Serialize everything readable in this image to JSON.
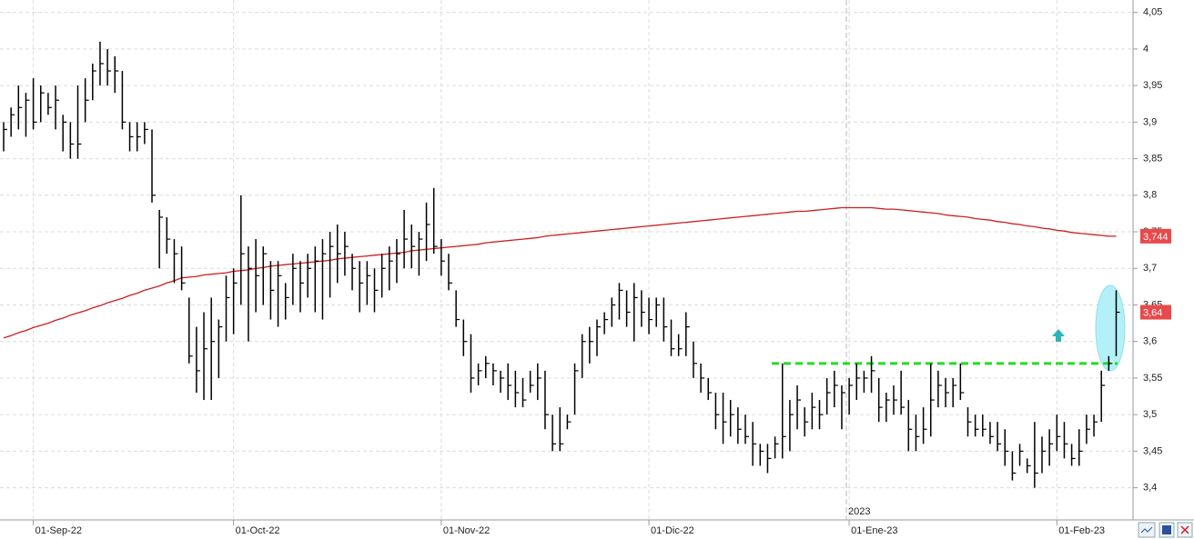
{
  "chart_data": {
    "type": "ohlc",
    "categories": [
      null,
      null,
      null,
      null,
      "01-Sep-22",
      null,
      null,
      null,
      null,
      null,
      null,
      null,
      null,
      null,
      null,
      null,
      null,
      null,
      null,
      null,
      null,
      null,
      null,
      null,
      null,
      null,
      null,
      null,
      null,
      null,
      null,
      "01-Oct-22",
      null,
      null,
      null,
      null,
      null,
      null,
      null,
      null,
      null,
      null,
      null,
      null,
      null,
      null,
      null,
      null,
      null,
      null,
      null,
      null,
      null,
      null,
      null,
      null,
      null,
      null,
      null,
      "01-Nov-22",
      null,
      null,
      null,
      null,
      null,
      null,
      null,
      null,
      null,
      null,
      null,
      null,
      null,
      null,
      null,
      null,
      null,
      null,
      null,
      null,
      null,
      null,
      null,
      null,
      null,
      null,
      null,
      "01-Dic-22",
      null,
      null,
      null,
      null,
      null,
      null,
      null,
      null,
      null,
      null,
      null,
      null,
      null,
      null,
      null,
      null,
      null,
      null,
      null,
      null,
      null,
      null,
      null,
      null,
      null,
      null,
      "01-Ene-23",
      null,
      null,
      null,
      null,
      null,
      null,
      null,
      null,
      null,
      null,
      null,
      null,
      null,
      null,
      null,
      null,
      null,
      null,
      null,
      null,
      null,
      null,
      null,
      null,
      null,
      null,
      null,
      "01-Feb-23",
      null,
      null,
      null,
      null,
      null,
      null,
      null,
      null
    ],
    "high": [
      3.9,
      3.92,
      3.95,
      3.94,
      3.96,
      3.95,
      3.94,
      3.95,
      3.91,
      3.9,
      3.95,
      3.96,
      3.98,
      4.01,
      4.0,
      3.99,
      3.97,
      3.9,
      3.9,
      3.9,
      3.89,
      3.78,
      3.77,
      3.74,
      3.73,
      3.66,
      3.62,
      3.64,
      3.66,
      3.63,
      3.69,
      3.7,
      3.8,
      3.73,
      3.74,
      3.73,
      3.71,
      3.71,
      3.68,
      3.72,
      3.71,
      3.72,
      3.73,
      3.74,
      3.75,
      3.76,
      3.75,
      3.72,
      3.71,
      3.71,
      3.7,
      3.72,
      3.73,
      3.74,
      3.78,
      3.76,
      3.75,
      3.79,
      3.81,
      3.74,
      3.72,
      3.67,
      3.63,
      3.61,
      3.57,
      3.58,
      3.57,
      3.56,
      3.57,
      3.56,
      3.55,
      3.56,
      3.57,
      3.56,
      3.5,
      3.51,
      3.5,
      3.57,
      3.61,
      3.62,
      3.63,
      3.64,
      3.66,
      3.68,
      3.67,
      3.68,
      3.67,
      3.66,
      3.66,
      3.66,
      3.63,
      3.61,
      3.64,
      3.6,
      3.57,
      3.55,
      3.53,
      3.53,
      3.52,
      3.51,
      3.5,
      3.49,
      3.46,
      3.46,
      3.47,
      3.57,
      3.52,
      3.54,
      3.51,
      3.53,
      3.52,
      3.55,
      3.56,
      3.54,
      3.55,
      3.57,
      3.56,
      3.58,
      3.55,
      3.53,
      3.54,
      3.56,
      3.52,
      3.5,
      3.51,
      3.57,
      3.56,
      3.55,
      3.55,
      3.57,
      3.51,
      3.5,
      3.5,
      3.49,
      3.49,
      3.48,
      3.45,
      3.46,
      3.44,
      3.49,
      3.47,
      3.48,
      3.5,
      3.49,
      3.46,
      3.48,
      3.5,
      3.5,
      3.56,
      3.58,
      3.67
    ],
    "low": [
      3.86,
      3.88,
      3.89,
      3.88,
      3.89,
      3.9,
      3.91,
      3.89,
      3.86,
      3.85,
      3.85,
      3.9,
      3.93,
      3.95,
      3.95,
      3.94,
      3.89,
      3.86,
      3.86,
      3.87,
      3.79,
      3.7,
      3.72,
      3.68,
      3.67,
      3.57,
      3.53,
      3.52,
      3.52,
      3.55,
      3.6,
      3.61,
      3.65,
      3.6,
      3.64,
      3.65,
      3.63,
      3.62,
      3.63,
      3.65,
      3.64,
      3.66,
      3.64,
      3.63,
      3.66,
      3.68,
      3.69,
      3.67,
      3.64,
      3.65,
      3.64,
      3.66,
      3.67,
      3.68,
      3.7,
      3.7,
      3.69,
      3.71,
      3.72,
      3.69,
      3.67,
      3.62,
      3.58,
      3.53,
      3.54,
      3.55,
      3.54,
      3.53,
      3.52,
      3.51,
      3.51,
      3.53,
      3.52,
      3.48,
      3.45,
      3.45,
      3.48,
      3.5,
      3.55,
      3.57,
      3.58,
      3.61,
      3.62,
      3.63,
      3.62,
      3.6,
      3.62,
      3.61,
      3.62,
      3.6,
      3.58,
      3.58,
      3.58,
      3.55,
      3.53,
      3.52,
      3.48,
      3.46,
      3.47,
      3.46,
      3.46,
      3.43,
      3.43,
      3.42,
      3.44,
      3.44,
      3.45,
      3.48,
      3.47,
      3.48,
      3.48,
      3.5,
      3.51,
      3.48,
      3.5,
      3.52,
      3.53,
      3.53,
      3.49,
      3.49,
      3.5,
      3.5,
      3.45,
      3.45,
      3.46,
      3.47,
      3.51,
      3.51,
      3.51,
      3.52,
      3.47,
      3.47,
      3.47,
      3.46,
      3.45,
      3.43,
      3.41,
      3.43,
      3.42,
      3.4,
      3.42,
      3.43,
      3.45,
      3.44,
      3.43,
      3.43,
      3.46,
      3.47,
      3.49,
      3.56,
      3.58
    ],
    "close": [
      3.89,
      3.91,
      3.92,
      3.93,
      3.9,
      3.94,
      3.92,
      3.93,
      3.9,
      3.87,
      3.87,
      3.93,
      3.97,
      3.98,
      3.97,
      3.97,
      3.9,
      3.88,
      3.88,
      3.89,
      3.8,
      3.77,
      3.74,
      3.72,
      3.68,
      3.58,
      3.56,
      3.59,
      3.6,
      3.62,
      3.66,
      3.68,
      3.72,
      3.7,
      3.69,
      3.72,
      3.67,
      3.69,
      3.66,
      3.7,
      3.68,
      3.7,
      3.71,
      3.72,
      3.73,
      3.72,
      3.73,
      3.7,
      3.68,
      3.69,
      3.67,
      3.7,
      3.71,
      3.72,
      3.74,
      3.73,
      3.74,
      3.76,
      3.73,
      3.71,
      3.68,
      3.63,
      3.6,
      3.55,
      3.56,
      3.57,
      3.56,
      3.55,
      3.54,
      3.53,
      3.52,
      3.54,
      3.55,
      3.5,
      3.46,
      3.46,
      3.49,
      3.56,
      3.6,
      3.6,
      3.62,
      3.63,
      3.65,
      3.67,
      3.64,
      3.66,
      3.64,
      3.63,
      3.65,
      3.62,
      3.59,
      3.59,
      3.62,
      3.57,
      3.55,
      3.53,
      3.5,
      3.49,
      3.5,
      3.48,
      3.47,
      3.46,
      3.45,
      3.44,
      3.46,
      3.47,
      3.5,
      3.52,
      3.49,
      3.51,
      3.5,
      3.53,
      3.54,
      3.53,
      3.54,
      3.55,
      3.55,
      3.56,
      3.51,
      3.52,
      3.52,
      3.51,
      3.48,
      3.47,
      3.48,
      3.52,
      3.54,
      3.53,
      3.54,
      3.53,
      3.49,
      3.48,
      3.48,
      3.47,
      3.46,
      3.45,
      3.42,
      3.45,
      3.43,
      3.42,
      3.45,
      3.46,
      3.47,
      3.46,
      3.44,
      3.45,
      3.48,
      3.49,
      3.54,
      3.57,
      3.64
    ],
    "color": "#000000",
    "moving_average": {
      "color": "#cc1f1f",
      "values": [
        3.605,
        3.608,
        3.612,
        3.615,
        3.619,
        3.622,
        3.625,
        3.629,
        3.632,
        3.636,
        3.639,
        3.642,
        3.646,
        3.649,
        3.653,
        3.656,
        3.659,
        3.663,
        3.666,
        3.67,
        3.673,
        3.676,
        3.68,
        3.683,
        3.687,
        3.688,
        3.689,
        3.691,
        3.692,
        3.693,
        3.694,
        3.696,
        3.697,
        3.698,
        3.7,
        3.701,
        3.703,
        3.704,
        3.705,
        3.706,
        3.707,
        3.708,
        3.709,
        3.71,
        3.711,
        3.713,
        3.714,
        3.715,
        3.716,
        3.717,
        3.718,
        3.719,
        3.72,
        3.721,
        3.722,
        3.724,
        3.725,
        3.726,
        3.727,
        3.728,
        3.729,
        3.73,
        3.731,
        3.732,
        3.733,
        3.735,
        3.736,
        3.737,
        3.738,
        3.739,
        3.74,
        3.741,
        3.742,
        3.744,
        3.745,
        3.746,
        3.747,
        3.748,
        3.749,
        3.75,
        3.751,
        3.752,
        3.753,
        3.754,
        3.755,
        3.756,
        3.757,
        3.758,
        3.759,
        3.76,
        3.761,
        3.762,
        3.763,
        3.764,
        3.765,
        3.766,
        3.767,
        3.768,
        3.769,
        3.77,
        3.771,
        3.772,
        3.773,
        3.774,
        3.775,
        3.776,
        3.777,
        3.778,
        3.778,
        3.779,
        3.78,
        3.781,
        3.782,
        3.783,
        3.783,
        3.783,
        3.783,
        3.783,
        3.782,
        3.781,
        3.781,
        3.78,
        3.779,
        3.778,
        3.777,
        3.776,
        3.775,
        3.773,
        3.772,
        3.771,
        3.77,
        3.768,
        3.767,
        3.766,
        3.764,
        3.763,
        3.761,
        3.76,
        3.758,
        3.757,
        3.755,
        3.754,
        3.752,
        3.751,
        3.749,
        3.748,
        3.747,
        3.746,
        3.745,
        3.744,
        3.744
      ]
    },
    "price_tags": [
      {
        "value": 3.744,
        "label": "3,744"
      },
      {
        "value": 3.64,
        "label": "3,64"
      }
    ],
    "support_level": {
      "value": 3.57,
      "color": "#22dd22"
    },
    "year_label": "2023",
    "ylim": [
      3.356,
      4.067
    ],
    "yticks": [
      {
        "value": 3.4,
        "label": "3,4"
      },
      {
        "value": 3.45,
        "label": "3,45"
      },
      {
        "value": 3.5,
        "label": "3,5"
      },
      {
        "value": 3.55,
        "label": "3,55"
      },
      {
        "value": 3.6,
        "label": "3,6"
      },
      {
        "value": 3.65,
        "label": "3,65"
      },
      {
        "value": 3.7,
        "label": "3,7"
      },
      {
        "value": 3.75,
        "label": "3,75"
      },
      {
        "value": 3.8,
        "label": "3,8"
      },
      {
        "value": 3.85,
        "label": "3,85"
      },
      {
        "value": 3.9,
        "label": "3,9"
      },
      {
        "value": 3.95,
        "label": "3,95"
      },
      4,
      {
        "value": 4.05,
        "label": "4,05"
      }
    ],
    "grid": true
  }
}
